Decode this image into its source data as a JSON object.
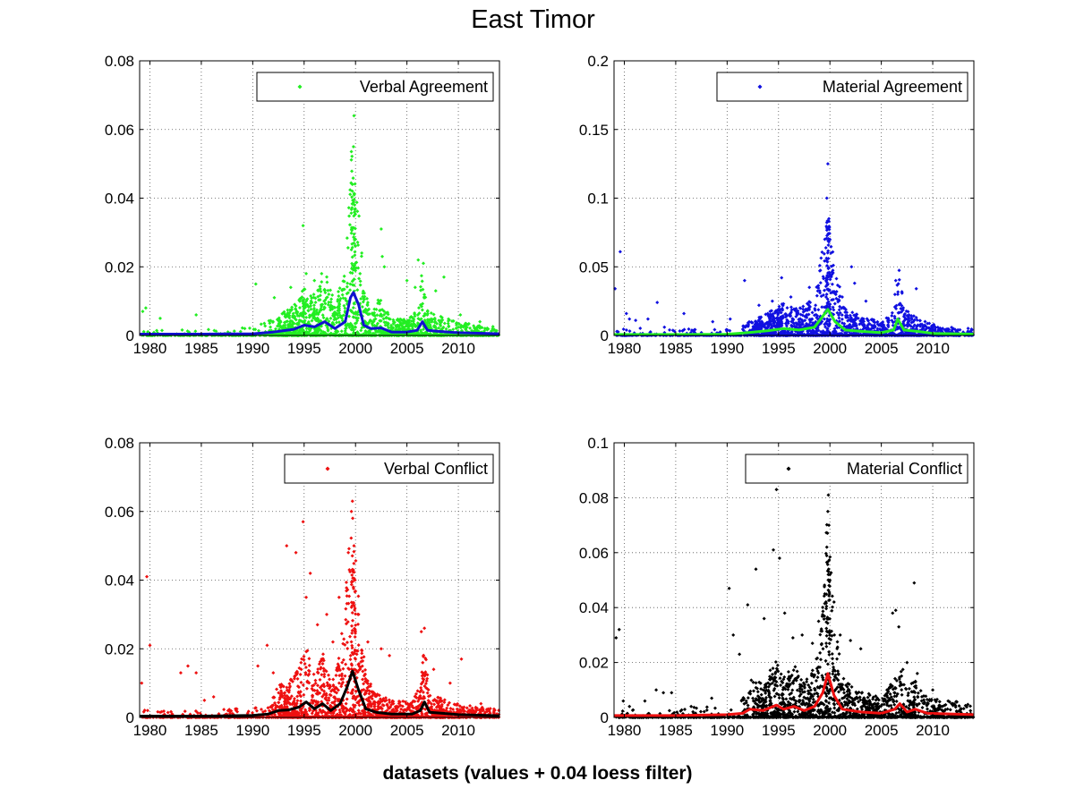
{
  "figure": {
    "title": "East Timor",
    "caption": "datasets (values + 0.04 loess filter)"
  },
  "chart_data": [
    {
      "type": "scatter",
      "legend": "Verbal Agreement",
      "legend_position": "top-right",
      "grid": true,
      "xlim": [
        1979,
        2014
      ],
      "xticks": [
        1980,
        1985,
        1990,
        1995,
        2000,
        2005,
        2010
      ],
      "ylim": [
        0,
        0.08
      ],
      "yticks": [
        "0",
        "0.02",
        "0.04",
        "0.06",
        "0.08"
      ],
      "point_color": "#22ee22",
      "line_color": "#1010d0",
      "outliers": [
        [
          1979.3,
          0.007
        ],
        [
          1979.6,
          0.008
        ],
        [
          1981.0,
          0.005
        ],
        [
          1984.5,
          0.006
        ],
        [
          1990.3,
          0.015
        ],
        [
          1992.1,
          0.011
        ],
        [
          1993.7,
          0.014
        ],
        [
          1994.9,
          0.032
        ],
        [
          1995.2,
          0.018
        ],
        [
          1996.0,
          0.016
        ],
        [
          1996.7,
          0.018
        ],
        [
          1997.4,
          0.012
        ],
        [
          1999.6,
          0.025
        ],
        [
          1999.7,
          0.044
        ],
        [
          1999.8,
          0.055
        ],
        [
          1999.85,
          0.064
        ],
        [
          1999.9,
          0.038
        ],
        [
          2000.0,
          0.028
        ],
        [
          2002.5,
          0.031
        ],
        [
          2002.6,
          0.023
        ],
        [
          2002.8,
          0.02
        ],
        [
          2005.0,
          0.016
        ],
        [
          2005.8,
          0.014
        ],
        [
          2006.1,
          0.022
        ],
        [
          2006.6,
          0.021
        ],
        [
          2007.8,
          0.013
        ],
        [
          2008.6,
          0.017
        ],
        [
          2010.2,
          0.006
        ],
        [
          2012.1,
          0.004
        ]
      ],
      "loess": [
        [
          1979,
          0.0004
        ],
        [
          1985,
          0.0004
        ],
        [
          1990,
          0.0005
        ],
        [
          1992,
          0.001
        ],
        [
          1994,
          0.0018
        ],
        [
          1995,
          0.003
        ],
        [
          1996,
          0.0025
        ],
        [
          1997,
          0.004
        ],
        [
          1998,
          0.002
        ],
        [
          1999,
          0.004
        ],
        [
          1999.5,
          0.011
        ],
        [
          1999.8,
          0.0125
        ],
        [
          2000.3,
          0.009
        ],
        [
          2000.8,
          0.003
        ],
        [
          2001.5,
          0.002
        ],
        [
          2002.5,
          0.0022
        ],
        [
          2003.5,
          0.001
        ],
        [
          2005,
          0.001
        ],
        [
          2006,
          0.0015
        ],
        [
          2006.5,
          0.004
        ],
        [
          2007,
          0.0015
        ],
        [
          2008,
          0.0012
        ],
        [
          2010,
          0.0008
        ],
        [
          2014,
          0.0005
        ]
      ]
    },
    {
      "type": "scatter",
      "legend": "Material Agreement",
      "legend_position": "top-right",
      "grid": true,
      "xlim": [
        1979,
        2014
      ],
      "xticks": [
        1980,
        1985,
        1990,
        1995,
        2000,
        2005,
        2010
      ],
      "ylim": [
        0,
        0.2
      ],
      "yticks": [
        "0",
        "0.05",
        "0.1",
        "0.15",
        "0.2"
      ],
      "point_color": "#1010e0",
      "line_color": "#22ee22",
      "outliers": [
        [
          1979.1,
          0.034
        ],
        [
          1979.6,
          0.061
        ],
        [
          1980.2,
          0.016
        ],
        [
          1980.5,
          0.012
        ],
        [
          1981.1,
          0.011
        ],
        [
          1982.3,
          0.012
        ],
        [
          1983.2,
          0.024
        ],
        [
          1983.9,
          0.006
        ],
        [
          1984.4,
          0.004
        ],
        [
          1985.8,
          0.016
        ],
        [
          1986.8,
          0.004
        ],
        [
          1987.5,
          0.002
        ],
        [
          1988.6,
          0.01
        ],
        [
          1990.3,
          0.012
        ],
        [
          1991.7,
          0.04
        ],
        [
          1993.1,
          0.022
        ],
        [
          1994.4,
          0.025
        ],
        [
          1995.3,
          0.042
        ],
        [
          1996.2,
          0.028
        ],
        [
          1997.1,
          0.02
        ],
        [
          1998.0,
          0.035
        ],
        [
          1998.6,
          0.022
        ],
        [
          1999.5,
          0.07
        ],
        [
          1999.7,
          0.1
        ],
        [
          1999.8,
          0.125
        ],
        [
          1999.9,
          0.085
        ],
        [
          2000.1,
          0.06
        ],
        [
          2001.2,
          0.028
        ],
        [
          2002.1,
          0.05
        ],
        [
          2002.4,
          0.038
        ],
        [
          2003.5,
          0.025
        ],
        [
          2006.4,
          0.04
        ],
        [
          2006.6,
          0.03
        ],
        [
          2008.4,
          0.034
        ],
        [
          2010.1,
          0.008
        ],
        [
          2012.0,
          0.005
        ]
      ],
      "loess": [
        [
          1979,
          0.0007
        ],
        [
          1985,
          0.0007
        ],
        [
          1990,
          0.0009
        ],
        [
          1992,
          0.002
        ],
        [
          1994,
          0.0035
        ],
        [
          1995.5,
          0.005
        ],
        [
          1997,
          0.004
        ],
        [
          1998.5,
          0.006
        ],
        [
          1999.3,
          0.014
        ],
        [
          1999.8,
          0.019
        ],
        [
          2000.5,
          0.01
        ],
        [
          2001.5,
          0.004
        ],
        [
          2003,
          0.003
        ],
        [
          2005,
          0.002
        ],
        [
          2006.2,
          0.004
        ],
        [
          2006.6,
          0.012
        ],
        [
          2007.2,
          0.004
        ],
        [
          2008.5,
          0.003
        ],
        [
          2010,
          0.0015
        ],
        [
          2014,
          0.001
        ]
      ]
    },
    {
      "type": "scatter",
      "legend": "Verbal Conflict",
      "legend_position": "top-right",
      "grid": true,
      "xlim": [
        1979,
        2014
      ],
      "xticks": [
        1980,
        1985,
        1990,
        1995,
        2000,
        2005,
        2010
      ],
      "ylim": [
        0,
        0.08
      ],
      "yticks": [
        "0",
        "0.02",
        "0.04",
        "0.06",
        "0.08"
      ],
      "point_color": "#ee1010",
      "line_color": "#000000",
      "outliers": [
        [
          1979.2,
          0.01
        ],
        [
          1979.7,
          0.041
        ],
        [
          1980.0,
          0.021
        ],
        [
          1983.0,
          0.013
        ],
        [
          1983.7,
          0.015
        ],
        [
          1984.5,
          0.013
        ],
        [
          1985.3,
          0.005
        ],
        [
          1986.2,
          0.006
        ],
        [
          1987.6,
          0.002
        ],
        [
          1990.5,
          0.015
        ],
        [
          1991.4,
          0.021
        ],
        [
          1992.0,
          0.013
        ],
        [
          1993.3,
          0.05
        ],
        [
          1994.2,
          0.048
        ],
        [
          1994.9,
          0.057
        ],
        [
          1995.2,
          0.035
        ],
        [
          1995.6,
          0.042
        ],
        [
          1996.3,
          0.027
        ],
        [
          1997.2,
          0.03
        ],
        [
          1997.8,
          0.022
        ],
        [
          1998.4,
          0.035
        ],
        [
          1999.3,
          0.048
        ],
        [
          1999.6,
          0.06
        ],
        [
          1999.7,
          0.063
        ],
        [
          1999.85,
          0.05
        ],
        [
          1999.95,
          0.04
        ],
        [
          2000.3,
          0.03
        ],
        [
          2001.2,
          0.022
        ],
        [
          2002.5,
          0.02
        ],
        [
          2003.3,
          0.018
        ],
        [
          2006.4,
          0.025
        ],
        [
          2006.7,
          0.026
        ],
        [
          2007.6,
          0.014
        ],
        [
          2009.2,
          0.01
        ],
        [
          2010.3,
          0.017
        ],
        [
          2012.2,
          0.004
        ]
      ],
      "loess": [
        [
          1979,
          0.0004
        ],
        [
          1985,
          0.0004
        ],
        [
          1990,
          0.0006
        ],
        [
          1991.5,
          0.001
        ],
        [
          1992.5,
          0.002
        ],
        [
          1993.5,
          0.0022
        ],
        [
          1994.5,
          0.003
        ],
        [
          1995.2,
          0.0045
        ],
        [
          1996,
          0.0025
        ],
        [
          1996.8,
          0.004
        ],
        [
          1997.6,
          0.002
        ],
        [
          1998.5,
          0.004
        ],
        [
          1999.2,
          0.009
        ],
        [
          1999.7,
          0.0135
        ],
        [
          2000.3,
          0.008
        ],
        [
          2001,
          0.0025
        ],
        [
          2002,
          0.0015
        ],
        [
          2003.5,
          0.001
        ],
        [
          2005.5,
          0.001
        ],
        [
          2006.3,
          0.002
        ],
        [
          2006.7,
          0.0045
        ],
        [
          2007.2,
          0.0015
        ],
        [
          2008.5,
          0.0012
        ],
        [
          2010,
          0.0008
        ],
        [
          2014,
          0.0005
        ]
      ]
    },
    {
      "type": "scatter",
      "legend": "Material Conflict",
      "legend_position": "top-right",
      "grid": true,
      "xlim": [
        1979,
        2014
      ],
      "xticks": [
        1980,
        1985,
        1990,
        1995,
        2000,
        2005,
        2010
      ],
      "ylim": [
        0,
        0.1
      ],
      "yticks": [
        "0",
        "0.02",
        "0.04",
        "0.06",
        "0.08",
        "0.1"
      ],
      "point_color": "#000000",
      "line_color": "#ee1010",
      "outliers": [
        [
          1979.2,
          0.029
        ],
        [
          1979.5,
          0.032
        ],
        [
          1979.9,
          0.006
        ],
        [
          1980.5,
          0.004
        ],
        [
          1982.0,
          0.006
        ],
        [
          1983.1,
          0.01
        ],
        [
          1983.8,
          0.009
        ],
        [
          1984.6,
          0.009
        ],
        [
          1986.5,
          0.004
        ],
        [
          1988.5,
          0.007
        ],
        [
          1990.2,
          0.047
        ],
        [
          1990.6,
          0.03
        ],
        [
          1991.2,
          0.023
        ],
        [
          1992.0,
          0.041
        ],
        [
          1992.8,
          0.054
        ],
        [
          1993.6,
          0.036
        ],
        [
          1994.5,
          0.061
        ],
        [
          1994.8,
          0.083
        ],
        [
          1995.1,
          0.058
        ],
        [
          1995.6,
          0.038
        ],
        [
          1996.4,
          0.029
        ],
        [
          1997.3,
          0.03
        ],
        [
          1998.3,
          0.027
        ],
        [
          1998.9,
          0.035
        ],
        [
          1999.5,
          0.045
        ],
        [
          1999.7,
          0.062
        ],
        [
          1999.8,
          0.075
        ],
        [
          1999.85,
          0.081
        ],
        [
          1999.9,
          0.07
        ],
        [
          2000.0,
          0.05
        ],
        [
          2000.4,
          0.042
        ],
        [
          2001.0,
          0.03
        ],
        [
          2002.0,
          0.028
        ],
        [
          2003.0,
          0.025
        ],
        [
          2006.1,
          0.038
        ],
        [
          2006.4,
          0.039
        ],
        [
          2006.7,
          0.033
        ],
        [
          2007.5,
          0.02
        ],
        [
          2008.2,
          0.049
        ],
        [
          2008.5,
          0.016
        ],
        [
          2010.0,
          0.01
        ],
        [
          2011.5,
          0.006
        ]
      ],
      "loess": [
        [
          1979,
          0.0007
        ],
        [
          1985,
          0.0007
        ],
        [
          1990,
          0.001
        ],
        [
          1991.5,
          0.0015
        ],
        [
          1992.2,
          0.003
        ],
        [
          1993.5,
          0.0025
        ],
        [
          1994.8,
          0.0045
        ],
        [
          1995.5,
          0.003
        ],
        [
          1996.5,
          0.004
        ],
        [
          1997.5,
          0.0025
        ],
        [
          1998.5,
          0.004
        ],
        [
          1999.3,
          0.009
        ],
        [
          1999.8,
          0.016
        ],
        [
          2000.4,
          0.008
        ],
        [
          2001.2,
          0.003
        ],
        [
          2003,
          0.002
        ],
        [
          2005,
          0.0015
        ],
        [
          2006.3,
          0.003
        ],
        [
          2006.8,
          0.005
        ],
        [
          2007.5,
          0.002
        ],
        [
          2008.3,
          0.003
        ],
        [
          2009.5,
          0.0015
        ],
        [
          2014,
          0.001
        ]
      ]
    }
  ]
}
